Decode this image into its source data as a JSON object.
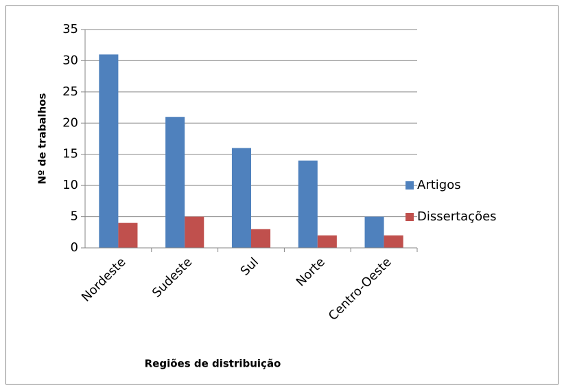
{
  "chart_data": {
    "type": "bar",
    "x_label": "Regiões de distribuição",
    "y_label": "Nº de trabalhos",
    "categories": [
      "Nordeste",
      "Sudeste",
      "Sul",
      "Norte",
      "Centro-Oeste"
    ],
    "series": [
      {
        "name": "Artigos",
        "color": "#4f81bd",
        "values": [
          31,
          21,
          16,
          14,
          5
        ]
      },
      {
        "name": "Dissertações",
        "color": "#c0504d",
        "values": [
          4,
          5,
          3,
          2,
          2
        ]
      }
    ],
    "ylim": [
      0,
      35
    ],
    "yticks": [
      0,
      5,
      10,
      15,
      20,
      25,
      30,
      35
    ],
    "grid": true,
    "legend": "right"
  }
}
